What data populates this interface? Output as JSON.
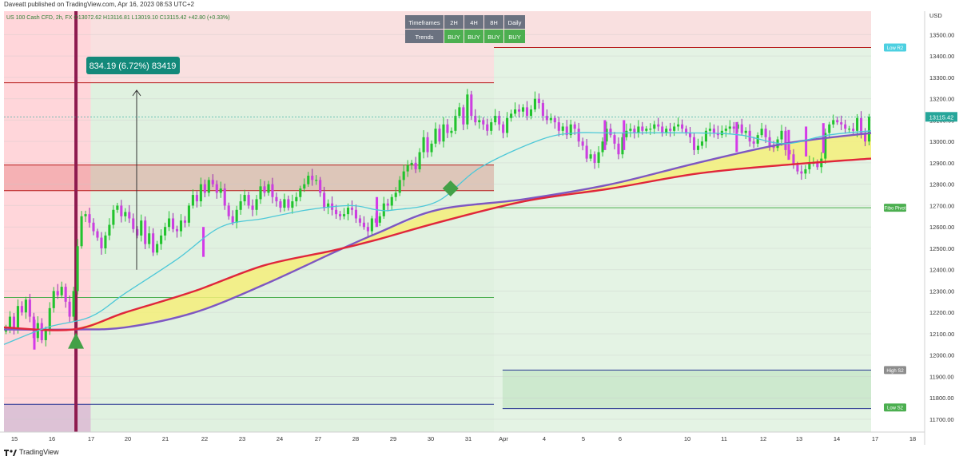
{
  "header": {
    "published_line": "Daveatt published on TradingView.com, Apr 16, 2023 08:53 UTC+2",
    "symbol_line": "US 100 Cash CFD, 2h, FX  O13072.62  H13116.81  L13019.10  C13115.42  +42.80 (+0.33%)"
  },
  "footer": {
    "brand": "TradingView"
  },
  "trend_table": {
    "row1": [
      "Timeframes",
      "2H",
      "4H",
      "8H",
      "Daily"
    ],
    "row2": [
      "Trends",
      "BUY",
      "BUY",
      "BUY",
      "BUY"
    ],
    "header_color": "#6b7280",
    "buy_color": "#4caf50"
  },
  "measure_label": "834.19 (6.72%) 83419",
  "chart_data": {
    "type": "candlestick",
    "title": "",
    "xlabel": "",
    "ylabel": "",
    "currency": "USD",
    "ylim": [
      11640,
      13610
    ],
    "x_tick_labels": [
      "15",
      "16",
      "17",
      "20",
      "21",
      "22",
      "23",
      "24",
      "27",
      "28",
      "29",
      "30",
      "31",
      "Apr",
      "4",
      "5",
      "6",
      "10",
      "11",
      "12",
      "13",
      "14",
      "17",
      "18"
    ],
    "y_ticks": [
      11700,
      11800,
      11900,
      12000,
      12100,
      12200,
      12300,
      12400,
      12500,
      12600,
      12700,
      12800,
      12900,
      13000,
      13100,
      13200,
      13300,
      13400,
      13500
    ],
    "y_tick_labels": [
      "11700.00",
      "11800.00",
      "11900.00",
      "12000.00",
      "12100.00",
      "12200.00",
      "12300.00",
      "12400.00",
      "12500.00",
      "12600.00",
      "12700.00",
      "12800.00",
      "12900.00",
      "13000.00",
      "13100.00",
      "13200.00",
      "13300.00",
      "13400.00",
      "13500.00"
    ],
    "last_price": 13115.42,
    "last_price_label": "13115.42",
    "pivot_labels": [
      {
        "text": "Low R2",
        "value": 13440,
        "color": "#4dd0e1"
      },
      {
        "text": "Fibo Pivot",
        "value": 12690,
        "color": "#4caf50"
      },
      {
        "text": "High S2",
        "value": 11930,
        "color": "#8d8d8d"
      },
      {
        "text": "Low S2",
        "value": 11755,
        "color": "#4caf50"
      }
    ],
    "closes": [
      12130,
      12180,
      12120,
      12230,
      12200,
      12260,
      12180,
      12080,
      12150,
      12070,
      12120,
      12220,
      12300,
      12280,
      12320,
      12250,
      12180,
      12300,
      12510,
      12650,
      12660,
      12620,
      12580,
      12550,
      12500,
      12560,
      12610,
      12680,
      12700,
      12650,
      12670,
      12640,
      12590,
      12560,
      12630,
      12520,
      12570,
      12480,
      12520,
      12560,
      12600,
      12640,
      12590,
      12580,
      12630,
      12620,
      12700,
      12750,
      12720,
      12800,
      12760,
      12820,
      12800,
      12760,
      12780,
      12700,
      12650,
      12620,
      12680,
      12720,
      12750,
      12700,
      12680,
      12730,
      12790,
      12760,
      12800,
      12740,
      12720,
      12690,
      12730,
      12690,
      12720,
      12740,
      12780,
      12800,
      12840,
      12820,
      12820,
      12760,
      12690,
      12710,
      12680,
      12660,
      12650,
      12660,
      12690,
      12680,
      12640,
      12620,
      12600,
      12580,
      12640,
      12620,
      12650,
      12710,
      12700,
      12740,
      12760,
      12820,
      12860,
      12890,
      12900,
      12870,
      12950,
      13020,
      12950,
      12990,
      13060,
      13000,
      13080,
      13040,
      13050,
      13120,
      13160,
      13080,
      13220,
      13120,
      13090,
      13100,
      13080,
      13050,
      13090,
      13120,
      13080,
      13040,
      13110,
      13130,
      13150,
      13140,
      13160,
      13120,
      13150,
      13200,
      13180,
      13120,
      13100,
      13110,
      13090,
      13050,
      13070,
      13030,
      13080,
      13060,
      13000,
      12980,
      12920,
      12940,
      12900,
      12950,
      13000,
      13060,
      13030,
      12990,
      12940,
      13020,
      13050,
      13060,
      13040,
      13070,
      13050,
      13060,
      13060,
      13080,
      13070,
      13040,
      13060,
      13050,
      13070,
      13080,
      13060,
      13040,
      13020,
      12960,
      12980,
      13000,
      13050,
      13060,
      13040,
      13030,
      13050,
      13060,
      13070,
      13060,
      13080,
      13040,
      13050,
      13000,
      12990,
      13030,
      13060,
      13020,
      12980,
      12970,
      13010,
      13050,
      12960,
      12940,
      12890,
      12860,
      12850,
      12870,
      12900,
      12900,
      12880,
      12920,
      13040,
      13080,
      13100,
      13090,
      13080,
      13060,
      13060,
      13050,
      13110,
      13040,
      13000,
      13115
    ],
    "series": [
      {
        "name": "",
        "kind": "ema_fast",
        "color": "#4dc8d8",
        "points": [
          [
            0,
            12050
          ],
          [
            0.05,
            12130
          ],
          [
            0.1,
            12180
          ],
          [
            0.14,
            12290
          ],
          [
            0.2,
            12450
          ],
          [
            0.25,
            12600
          ],
          [
            0.3,
            12640
          ],
          [
            0.35,
            12680
          ],
          [
            0.4,
            12700
          ],
          [
            0.43,
            12680
          ],
          [
            0.45,
            12680
          ],
          [
            0.5,
            12720
          ],
          [
            0.55,
            12880
          ],
          [
            0.62,
            13010
          ],
          [
            0.66,
            13040
          ],
          [
            0.7,
            13040
          ],
          [
            0.8,
            13040
          ],
          [
            0.85,
            13030
          ],
          [
            0.9,
            12990
          ],
          [
            0.95,
            13030
          ],
          [
            1.0,
            13050
          ]
        ]
      },
      {
        "name": "",
        "kind": "ma_slow_purple",
        "color": "#7e57c2",
        "points": [
          [
            0,
            12120
          ],
          [
            0.08,
            12120
          ],
          [
            0.14,
            12130
          ],
          [
            0.22,
            12200
          ],
          [
            0.3,
            12330
          ],
          [
            0.38,
            12480
          ],
          [
            0.43,
            12570
          ],
          [
            0.5,
            12680
          ],
          [
            0.6,
            12730
          ],
          [
            0.7,
            12800
          ],
          [
            0.8,
            12900
          ],
          [
            0.9,
            12990
          ],
          [
            1.0,
            13040
          ]
        ]
      },
      {
        "name": "",
        "kind": "ma_slow_red",
        "color": "#e0263b",
        "points": [
          [
            0,
            12130
          ],
          [
            0.08,
            12120
          ],
          [
            0.14,
            12200
          ],
          [
            0.22,
            12300
          ],
          [
            0.3,
            12420
          ],
          [
            0.38,
            12490
          ],
          [
            0.43,
            12540
          ],
          [
            0.5,
            12620
          ],
          [
            0.6,
            12720
          ],
          [
            0.7,
            12780
          ],
          [
            0.8,
            12850
          ],
          [
            0.9,
            12890
          ],
          [
            1.0,
            12920
          ]
        ]
      }
    ],
    "horizontal_lines": [
      {
        "value": 13440,
        "color": "#b71c1c",
        "from": 0.565,
        "to": 1.0
      },
      {
        "value": 13275,
        "color": "#b71c1c",
        "from": 0.0,
        "to": 0.565
      },
      {
        "value": 12890,
        "color": "#b71c1c",
        "from": 0.0,
        "to": 0.565
      },
      {
        "value": 12770,
        "color": "#b71c1c",
        "from": 0.0,
        "to": 0.565
      },
      {
        "value": 12690,
        "color": "#4caf50",
        "from": 0.565,
        "to": 1.0
      },
      {
        "value": 12270,
        "color": "#4caf50",
        "from": 0.0,
        "to": 0.565
      },
      {
        "value": 11930,
        "color": "#283593",
        "from": 0.575,
        "to": 1.0
      },
      {
        "value": 11750,
        "color": "#283593",
        "from": 0.575,
        "to": 1.0
      },
      {
        "value": 11770,
        "color": "#283593",
        "from": 0.0,
        "to": 0.565
      }
    ],
    "zones": [
      {
        "from": 0.0,
        "to": 0.1,
        "ylo": 11640,
        "yhi": 13610,
        "color": "#ff8a95",
        "opacity": 0.35
      },
      {
        "from": 0.1,
        "to": 0.565,
        "ylo": 13275,
        "yhi": 13610,
        "color": "#e57373",
        "opacity": 0.22
      },
      {
        "from": 0.1,
        "to": 0.565,
        "ylo": 11640,
        "yhi": 13275,
        "color": "#a5d6a7",
        "opacity": 0.35
      },
      {
        "from": 0.565,
        "to": 1.0,
        "ylo": 13440,
        "yhi": 13610,
        "color": "#e57373",
        "opacity": 0.22
      },
      {
        "from": 0.565,
        "to": 1.0,
        "ylo": 11640,
        "yhi": 13440,
        "color": "#a5d6a7",
        "opacity": 0.3
      },
      {
        "from": 0.0,
        "to": 0.565,
        "ylo": 12770,
        "yhi": 12890,
        "color": "#d32f2f",
        "opacity": 0.22
      },
      {
        "from": 0.575,
        "to": 1.0,
        "ylo": 11750,
        "yhi": 11930,
        "color": "#66bb6a",
        "opacity": 0.18
      },
      {
        "from": 0.0,
        "to": 0.1,
        "ylo": 11640,
        "yhi": 11770,
        "color": "#7986cb",
        "opacity": 0.25
      }
    ],
    "signal_bar": {
      "at": 0.083,
      "color": "#8e1b4f"
    },
    "buy_arrow": {
      "at": 0.083,
      "value": 12030,
      "color": "#43a047"
    },
    "diamond": {
      "at": 0.515,
      "value": 12780,
      "color": "#43a047"
    },
    "measure_arrow": {
      "at": 0.153,
      "from": 12400,
      "to": 13240
    },
    "bearish_spikes": [
      0.035,
      0.23,
      0.43,
      0.693,
      0.715,
      0.845,
      0.905,
      0.925,
      0.945
    ]
  }
}
